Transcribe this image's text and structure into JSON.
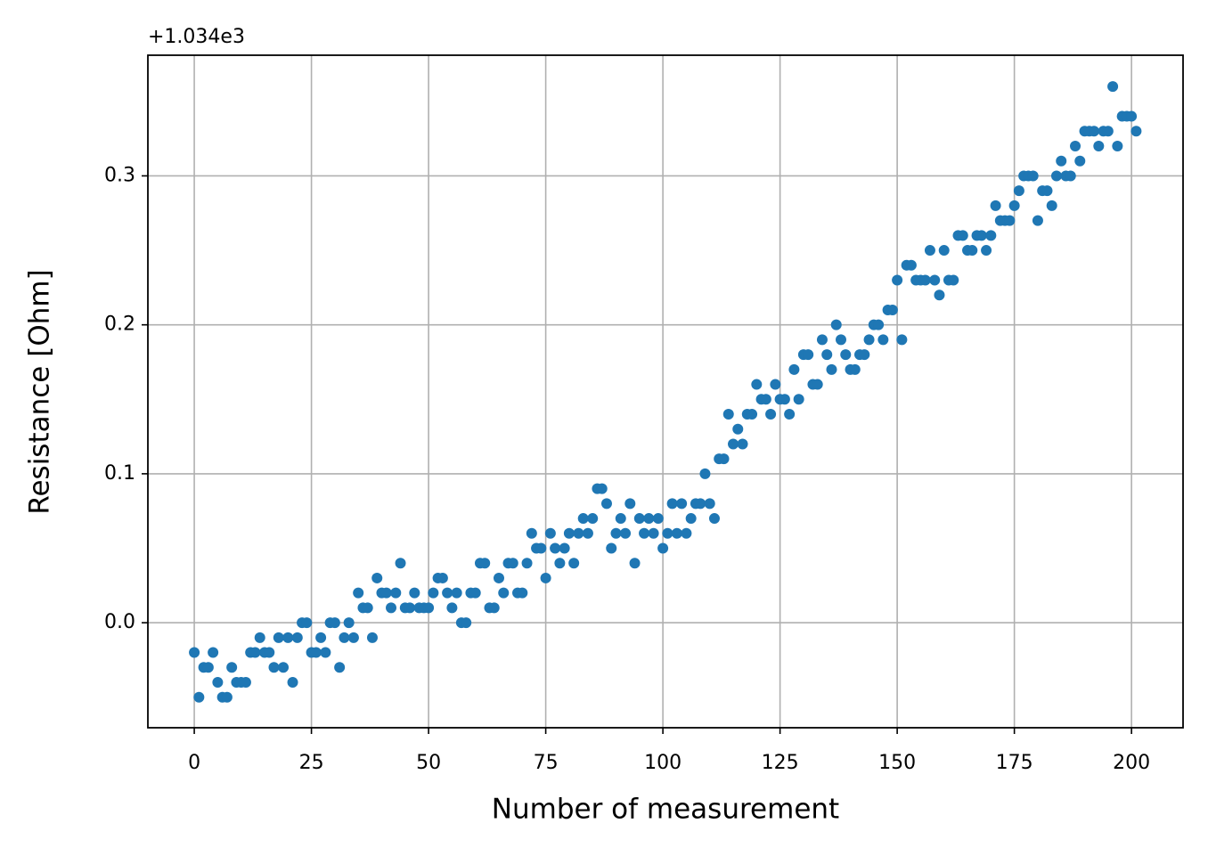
{
  "chart_data": {
    "type": "scatter",
    "offset_text": "+1.034e3",
    "xlabel": "Number of measurement",
    "ylabel": "Resistance [Ohm]",
    "color": "#1f77b4",
    "grid": true,
    "xlim": [
      -9.9,
      211
    ],
    "ylim": [
      -0.0705,
      0.381
    ],
    "xticks": [
      0,
      25,
      50,
      75,
      100,
      125,
      150,
      175,
      200
    ],
    "yticks": [
      {
        "value": 0,
        "label": "0.0"
      },
      0.1,
      0.2,
      0.3
    ],
    "x": [
      0,
      1,
      2,
      3,
      4,
      5,
      6,
      7,
      8,
      9,
      10,
      11,
      12,
      13,
      14,
      15,
      16,
      17,
      18,
      19,
      20,
      21,
      22,
      23,
      24,
      25,
      26,
      27,
      28,
      29,
      30,
      31,
      32,
      33,
      34,
      35,
      36,
      37,
      38,
      39,
      40,
      41,
      42,
      43,
      44,
      45,
      46,
      47,
      48,
      49,
      50,
      51,
      52,
      53,
      54,
      55,
      56,
      57,
      58,
      59,
      60,
      61,
      62,
      63,
      64,
      65,
      66,
      67,
      68,
      69,
      70,
      71,
      72,
      73,
      74,
      75,
      76,
      77,
      78,
      79,
      80,
      81,
      82,
      83,
      84,
      85,
      86,
      87,
      88,
      89,
      90,
      91,
      92,
      93,
      94,
      95,
      96,
      97,
      98,
      99,
      100,
      101,
      102,
      103,
      104,
      105,
      106,
      107,
      108,
      109,
      110,
      111,
      112,
      113,
      114,
      115,
      116,
      117,
      118,
      119,
      120,
      121,
      122,
      123,
      124,
      125,
      126,
      127,
      128,
      129,
      130,
      131,
      132,
      133,
      134,
      135,
      136,
      137,
      138,
      139,
      140,
      141,
      142,
      143,
      144,
      145,
      146,
      147,
      148,
      149,
      150,
      151,
      152,
      153,
      154,
      155,
      156,
      157,
      158,
      159,
      160,
      161,
      162,
      163,
      164,
      165,
      166,
      167,
      168,
      169,
      170,
      171,
      172,
      173,
      174,
      175,
      176,
      177,
      178,
      179,
      180,
      181,
      182,
      183,
      184,
      185,
      186,
      187,
      188,
      189,
      190,
      191,
      192,
      193,
      194,
      195,
      196,
      197,
      198,
      199,
      200,
      201
    ],
    "values": [
      -0.02,
      -0.05,
      -0.03,
      -0.03,
      -0.02,
      -0.04,
      -0.05,
      -0.05,
      -0.03,
      -0.04,
      -0.04,
      -0.04,
      -0.02,
      -0.02,
      -0.01,
      -0.02,
      -0.02,
      -0.03,
      -0.01,
      -0.03,
      -0.01,
      -0.04,
      -0.01,
      0.0,
      0.0,
      -0.02,
      -0.02,
      -0.01,
      -0.02,
      0.0,
      0.0,
      -0.03,
      -0.01,
      0.0,
      -0.01,
      0.02,
      0.01,
      0.01,
      -0.01,
      0.03,
      0.02,
      0.02,
      0.01,
      0.02,
      0.04,
      0.01,
      0.01,
      0.02,
      0.01,
      0.01,
      0.01,
      0.02,
      0.03,
      0.03,
      0.02,
      0.01,
      0.02,
      0.0,
      0.0,
      0.02,
      0.02,
      0.04,
      0.04,
      0.01,
      0.01,
      0.03,
      0.02,
      0.04,
      0.04,
      0.02,
      0.02,
      0.04,
      0.06,
      0.05,
      0.05,
      0.03,
      0.06,
      0.05,
      0.04,
      0.05,
      0.06,
      0.04,
      0.06,
      0.07,
      0.06,
      0.07,
      0.09,
      0.09,
      0.08,
      0.05,
      0.06,
      0.07,
      0.06,
      0.08,
      0.04,
      0.07,
      0.06,
      0.07,
      0.06,
      0.07,
      0.05,
      0.06,
      0.08,
      0.06,
      0.08,
      0.06,
      0.07,
      0.08,
      0.08,
      0.1,
      0.08,
      0.07,
      0.11,
      0.11,
      0.14,
      0.12,
      0.13,
      0.12,
      0.14,
      0.14,
      0.16,
      0.15,
      0.15,
      0.14,
      0.16,
      0.15,
      0.15,
      0.14,
      0.17,
      0.15,
      0.18,
      0.18,
      0.16,
      0.16,
      0.19,
      0.18,
      0.17,
      0.2,
      0.19,
      0.18,
      0.17,
      0.17,
      0.18,
      0.18,
      0.19,
      0.2,
      0.2,
      0.19,
      0.21,
      0.21,
      0.23,
      0.19,
      0.24,
      0.24,
      0.23,
      0.23,
      0.23,
      0.25,
      0.23,
      0.22,
      0.25,
      0.23,
      0.23,
      0.26,
      0.26,
      0.25,
      0.25,
      0.26,
      0.26,
      0.25,
      0.26,
      0.28,
      0.27,
      0.27,
      0.27,
      0.28,
      0.29,
      0.3,
      0.3,
      0.3,
      0.27,
      0.29,
      0.29,
      0.28,
      0.3,
      0.31,
      0.3,
      0.3,
      0.32,
      0.31,
      0.33,
      0.33,
      0.33,
      0.32,
      0.33,
      0.33,
      0.36,
      0.32,
      0.34,
      0.34,
      0.34,
      0.33
    ]
  }
}
